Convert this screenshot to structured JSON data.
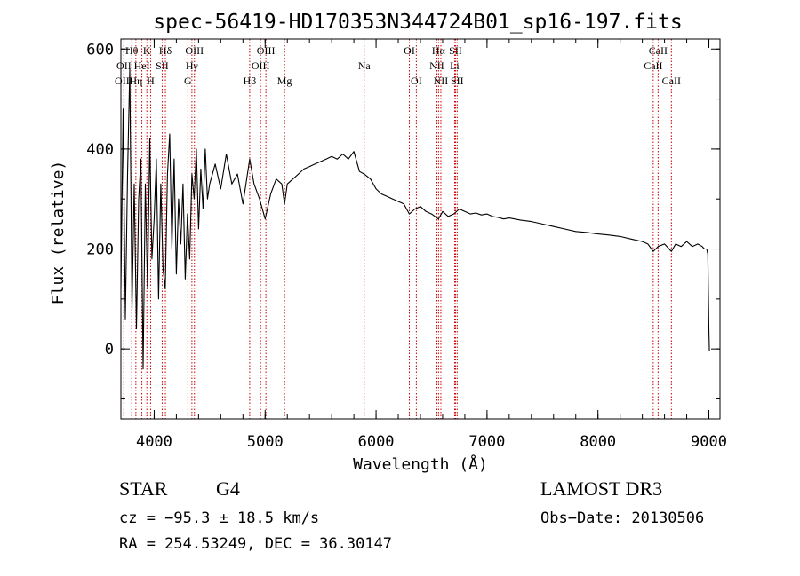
{
  "chart_data": {
    "type": "line",
    "title": "spec-56419-HD170353N344724B01_sp16-197.fits",
    "xlabel": "Wavelength (Å)",
    "ylabel": "Flux (relative)",
    "xlim": [
      3700,
      9100
    ],
    "ylim": [
      -140,
      620
    ],
    "xticks": [
      4000,
      5000,
      6000,
      7000,
      8000,
      9000
    ],
    "yticks": [
      0,
      200,
      400,
      600
    ],
    "series": [
      {
        "name": "spectrum",
        "x": [
          3700,
          3720,
          3740,
          3760,
          3780,
          3800,
          3820,
          3840,
          3860,
          3880,
          3900,
          3920,
          3940,
          3960,
          3980,
          4000,
          4020,
          4040,
          4060,
          4080,
          4100,
          4120,
          4140,
          4160,
          4180,
          4200,
          4220,
          4240,
          4260,
          4280,
          4300,
          4320,
          4340,
          4360,
          4380,
          4400,
          4420,
          4440,
          4460,
          4480,
          4500,
          4550,
          4600,
          4650,
          4700,
          4750,
          4800,
          4861,
          4900,
          4950,
          5000,
          5050,
          5100,
          5150,
          5175,
          5200,
          5250,
          5300,
          5350,
          5400,
          5450,
          5500,
          5550,
          5600,
          5650,
          5700,
          5750,
          5800,
          5850,
          5893,
          5950,
          6000,
          6050,
          6100,
          6150,
          6200,
          6250,
          6300,
          6350,
          6400,
          6450,
          6500,
          6563,
          6600,
          6650,
          6700,
          6750,
          6800,
          6850,
          6900,
          6950,
          7000,
          7050,
          7100,
          7150,
          7200,
          7300,
          7400,
          7500,
          7600,
          7700,
          7800,
          7900,
          8000,
          8100,
          8200,
          8300,
          8400,
          8450,
          8498,
          8542,
          8600,
          8662,
          8700,
          8750,
          8800,
          8850,
          8900,
          8940,
          8960,
          8980,
          8990,
          9000,
          9005
        ],
        "values": [
          120,
          480,
          60,
          350,
          560,
          80,
          330,
          40,
          300,
          380,
          -40,
          330,
          120,
          420,
          180,
          260,
          380,
          100,
          330,
          160,
          120,
          350,
          430,
          200,
          380,
          150,
          300,
          210,
          330,
          140,
          270,
          180,
          350,
          300,
          400,
          240,
          360,
          280,
          400,
          300,
          330,
          370,
          320,
          390,
          330,
          350,
          290,
          380,
          330,
          300,
          260,
          310,
          340,
          330,
          290,
          330,
          340,
          350,
          360,
          365,
          370,
          375,
          380,
          385,
          380,
          390,
          380,
          395,
          355,
          350,
          340,
          320,
          310,
          305,
          300,
          295,
          290,
          270,
          280,
          285,
          275,
          270,
          260,
          275,
          265,
          270,
          280,
          275,
          270,
          272,
          268,
          270,
          265,
          263,
          260,
          262,
          258,
          255,
          250,
          245,
          240,
          235,
          233,
          230,
          228,
          225,
          220,
          215,
          210,
          195,
          205,
          210,
          195,
          210,
          205,
          215,
          205,
          210,
          205,
          200,
          200,
          190,
          40,
          -5
        ]
      }
    ],
    "lines": [
      {
        "label": "Hθ",
        "wavelength": 3798,
        "row": 1
      },
      {
        "label": "OII",
        "wavelength": 3727,
        "row": 2
      },
      {
        "label": "OIII",
        "wavelength": 3727,
        "row": 3
      },
      {
        "label": "Hη",
        "wavelength": 3835,
        "row": 3
      },
      {
        "label": "K",
        "wavelength": 3934,
        "row": 1
      },
      {
        "label": "HeI",
        "wavelength": 3889,
        "row": 2
      },
      {
        "label": "H",
        "wavelength": 3968,
        "row": 3
      },
      {
        "label": "Hδ",
        "wavelength": 4101,
        "row": 1
      },
      {
        "label": "SII",
        "wavelength": 4072,
        "row": 2
      },
      {
        "label": "OIII",
        "wavelength": 4363,
        "row": 1
      },
      {
        "label": "Hγ",
        "wavelength": 4340,
        "row": 2
      },
      {
        "label": "G",
        "wavelength": 4304,
        "row": 3
      },
      {
        "label": "OIII",
        "wavelength": 5007,
        "row": 1
      },
      {
        "label": "OIII",
        "wavelength": 4959,
        "row": 2
      },
      {
        "label": "Hβ",
        "wavelength": 4861,
        "row": 3
      },
      {
        "label": "Mg",
        "wavelength": 5175,
        "row": 3
      },
      {
        "label": "Na",
        "wavelength": 5893,
        "row": 2
      },
      {
        "label": "OI",
        "wavelength": 6300,
        "row": 1
      },
      {
        "label": "OI",
        "wavelength": 6363,
        "row": 3
      },
      {
        "label": "Hα",
        "wavelength": 6563,
        "row": 1
      },
      {
        "label": "SII",
        "wavelength": 6716,
        "row": 1
      },
      {
        "label": "NII",
        "wavelength": 6548,
        "row": 2
      },
      {
        "label": "Li",
        "wavelength": 6708,
        "row": 2
      },
      {
        "label": "NII",
        "wavelength": 6584,
        "row": 3
      },
      {
        "label": "SII",
        "wavelength": 6731,
        "row": 3
      },
      {
        "label": "CaII",
        "wavelength": 8542,
        "row": 1
      },
      {
        "label": "CaII",
        "wavelength": 8498,
        "row": 2
      },
      {
        "label": "CaII",
        "wavelength": 8662,
        "row": 3
      }
    ]
  },
  "info": {
    "object_class": "STAR",
    "subclass": "G4",
    "survey": "LAMOST DR3",
    "cz": "cz = −95.3 ± 18.5 km/s",
    "obs_date": "Obs−Date: 20130506",
    "radec": "RA = 254.53249, DEC =  36.30147"
  }
}
